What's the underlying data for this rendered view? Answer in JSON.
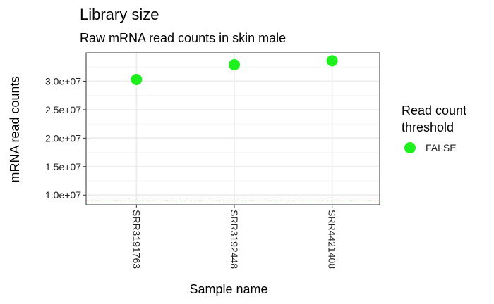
{
  "chart_data": {
    "type": "scatter",
    "title": "Library size",
    "subtitle": "Raw mRNA read counts in skin male",
    "xlabel": "Sample name",
    "ylabel": "mRNA read counts",
    "categories": [
      "SRR3191763",
      "SRR3192448",
      "SRR4421408"
    ],
    "series": [
      {
        "name": "FALSE",
        "color": "#1EF01E",
        "values": [
          30300000,
          32900000,
          33600000
        ]
      }
    ],
    "y_ticks": [
      10000000,
      15000000,
      20000000,
      25000000,
      30000000
    ],
    "y_tick_labels": [
      "1.0e+07",
      "1.5e+07",
      "2.0e+07",
      "2.5e+07",
      "3.0e+07"
    ],
    "ylim": [
      8300000,
      35000000
    ],
    "threshold_line": {
      "value": 9000000,
      "color": "#E8413D",
      "style": "dotted"
    },
    "legend": {
      "title_lines": [
        "Read count",
        "threshold"
      ],
      "entries": [
        "FALSE"
      ],
      "placement": "right"
    },
    "grid": true,
    "theme_colors": {
      "panel_border": "#333333",
      "grid_major": "#EBEBEB",
      "grid_minor": "#F5F5F5"
    }
  }
}
